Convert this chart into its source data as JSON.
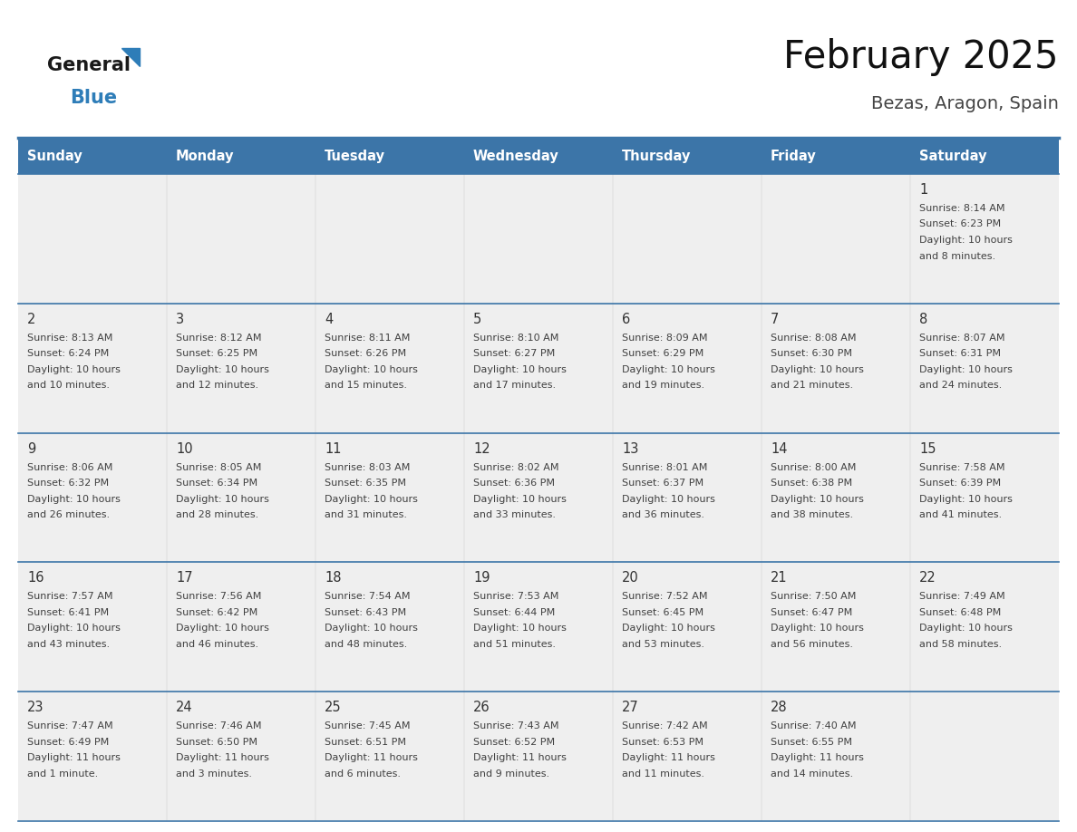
{
  "title": "February 2025",
  "subtitle": "Bezas, Aragon, Spain",
  "days_of_week": [
    "Sunday",
    "Monday",
    "Tuesday",
    "Wednesday",
    "Thursday",
    "Friday",
    "Saturday"
  ],
  "header_bg": "#3C75A8",
  "header_text_color": "#FFFFFF",
  "cell_bg": "#EFEFEF",
  "border_color": "#3C75A8",
  "text_color": "#404040",
  "day_number_color": "#333333",
  "title_color": "#111111",
  "subtitle_color": "#444444",
  "logo_general_color": "#1a1a1a",
  "logo_blue_color": "#2E7DB8",
  "weeks": [
    [
      null,
      null,
      null,
      null,
      null,
      null,
      {
        "day": 1,
        "sunrise": "8:14 AM",
        "sunset": "6:23 PM",
        "daylight": "10 hours\nand 8 minutes."
      }
    ],
    [
      {
        "day": 2,
        "sunrise": "8:13 AM",
        "sunset": "6:24 PM",
        "daylight": "10 hours\nand 10 minutes."
      },
      {
        "day": 3,
        "sunrise": "8:12 AM",
        "sunset": "6:25 PM",
        "daylight": "10 hours\nand 12 minutes."
      },
      {
        "day": 4,
        "sunrise": "8:11 AM",
        "sunset": "6:26 PM",
        "daylight": "10 hours\nand 15 minutes."
      },
      {
        "day": 5,
        "sunrise": "8:10 AM",
        "sunset": "6:27 PM",
        "daylight": "10 hours\nand 17 minutes."
      },
      {
        "day": 6,
        "sunrise": "8:09 AM",
        "sunset": "6:29 PM",
        "daylight": "10 hours\nand 19 minutes."
      },
      {
        "day": 7,
        "sunrise": "8:08 AM",
        "sunset": "6:30 PM",
        "daylight": "10 hours\nand 21 minutes."
      },
      {
        "day": 8,
        "sunrise": "8:07 AM",
        "sunset": "6:31 PM",
        "daylight": "10 hours\nand 24 minutes."
      }
    ],
    [
      {
        "day": 9,
        "sunrise": "8:06 AM",
        "sunset": "6:32 PM",
        "daylight": "10 hours\nand 26 minutes."
      },
      {
        "day": 10,
        "sunrise": "8:05 AM",
        "sunset": "6:34 PM",
        "daylight": "10 hours\nand 28 minutes."
      },
      {
        "day": 11,
        "sunrise": "8:03 AM",
        "sunset": "6:35 PM",
        "daylight": "10 hours\nand 31 minutes."
      },
      {
        "day": 12,
        "sunrise": "8:02 AM",
        "sunset": "6:36 PM",
        "daylight": "10 hours\nand 33 minutes."
      },
      {
        "day": 13,
        "sunrise": "8:01 AM",
        "sunset": "6:37 PM",
        "daylight": "10 hours\nand 36 minutes."
      },
      {
        "day": 14,
        "sunrise": "8:00 AM",
        "sunset": "6:38 PM",
        "daylight": "10 hours\nand 38 minutes."
      },
      {
        "day": 15,
        "sunrise": "7:58 AM",
        "sunset": "6:39 PM",
        "daylight": "10 hours\nand 41 minutes."
      }
    ],
    [
      {
        "day": 16,
        "sunrise": "7:57 AM",
        "sunset": "6:41 PM",
        "daylight": "10 hours\nand 43 minutes."
      },
      {
        "day": 17,
        "sunrise": "7:56 AM",
        "sunset": "6:42 PM",
        "daylight": "10 hours\nand 46 minutes."
      },
      {
        "day": 18,
        "sunrise": "7:54 AM",
        "sunset": "6:43 PM",
        "daylight": "10 hours\nand 48 minutes."
      },
      {
        "day": 19,
        "sunrise": "7:53 AM",
        "sunset": "6:44 PM",
        "daylight": "10 hours\nand 51 minutes."
      },
      {
        "day": 20,
        "sunrise": "7:52 AM",
        "sunset": "6:45 PM",
        "daylight": "10 hours\nand 53 minutes."
      },
      {
        "day": 21,
        "sunrise": "7:50 AM",
        "sunset": "6:47 PM",
        "daylight": "10 hours\nand 56 minutes."
      },
      {
        "day": 22,
        "sunrise": "7:49 AM",
        "sunset": "6:48 PM",
        "daylight": "10 hours\nand 58 minutes."
      }
    ],
    [
      {
        "day": 23,
        "sunrise": "7:47 AM",
        "sunset": "6:49 PM",
        "daylight": "11 hours\nand 1 minute."
      },
      {
        "day": 24,
        "sunrise": "7:46 AM",
        "sunset": "6:50 PM",
        "daylight": "11 hours\nand 3 minutes."
      },
      {
        "day": 25,
        "sunrise": "7:45 AM",
        "sunset": "6:51 PM",
        "daylight": "11 hours\nand 6 minutes."
      },
      {
        "day": 26,
        "sunrise": "7:43 AM",
        "sunset": "6:52 PM",
        "daylight": "11 hours\nand 9 minutes."
      },
      {
        "day": 27,
        "sunrise": "7:42 AM",
        "sunset": "6:53 PM",
        "daylight": "11 hours\nand 11 minutes."
      },
      {
        "day": 28,
        "sunrise": "7:40 AM",
        "sunset": "6:55 PM",
        "daylight": "11 hours\nand 14 minutes."
      },
      null
    ]
  ]
}
